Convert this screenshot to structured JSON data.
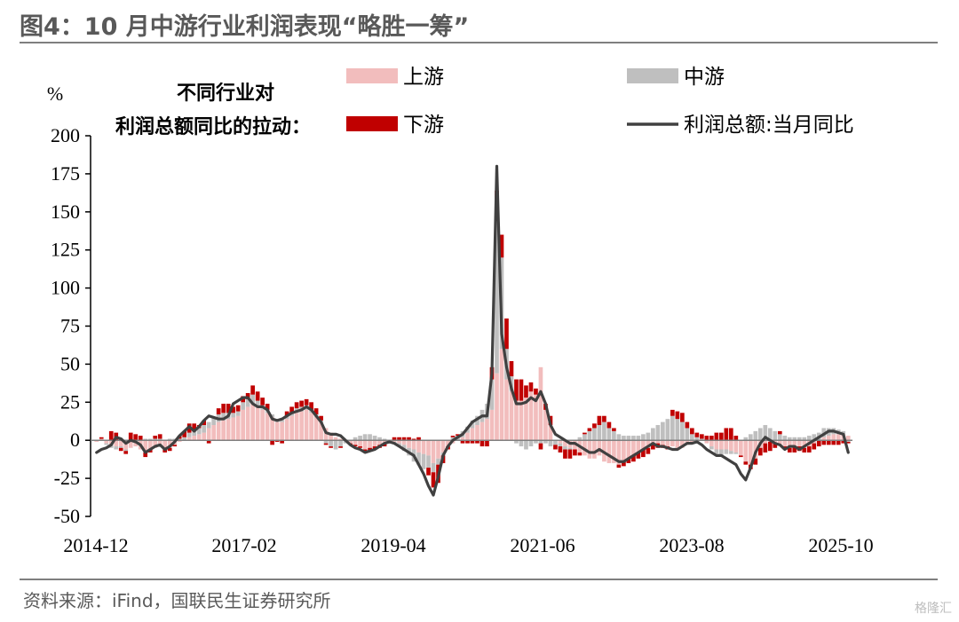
{
  "header": {
    "title": "图4：10 月中游行业利润表现“略胜一筹”"
  },
  "footer": {
    "source": "资料来源：iFind，国联民生证券研究所",
    "watermark": "格隆汇"
  },
  "chart_data": {
    "type": "bar",
    "stacked": true,
    "ylabel": "%",
    "ylim": [
      -50,
      200
    ],
    "yticks": [
      -50,
      -25,
      0,
      25,
      50,
      75,
      100,
      125,
      150,
      175,
      200
    ],
    "xticks": [
      "2014-12",
      "2017-02",
      "2019-04",
      "2021-06",
      "2023-08",
      "2025-10"
    ],
    "annotation": [
      "不同行业对",
      "利润总额同比的拉动："
    ],
    "legend_position": "top",
    "colors": {
      "上游": "#f2bdbd",
      "中游": "#bfbfbf",
      "下游": "#c00000",
      "line": "#404040"
    },
    "series": [
      {
        "name": "上游",
        "kind": "bar",
        "values": [
          -1,
          1,
          -2,
          -3,
          -4,
          -4,
          -6,
          -5,
          -4,
          -6,
          -8,
          -6,
          -5,
          -4,
          -6,
          -5,
          -3,
          -1,
          0,
          2,
          3,
          4,
          5,
          8,
          10,
          12,
          13,
          14,
          15,
          16,
          20,
          22,
          24,
          22,
          20,
          18,
          15,
          12,
          12,
          14,
          16,
          18,
          19,
          20,
          18,
          15,
          12,
          8,
          5,
          2,
          1,
          0,
          -2,
          -3,
          -4,
          -6,
          -5,
          -4,
          -3,
          -2,
          -1,
          -1,
          -2,
          -3,
          -5,
          -6,
          -8,
          -9,
          -10,
          -15,
          -12,
          -8,
          -4,
          -2,
          0,
          2,
          5,
          8,
          10,
          12,
          14,
          20,
          44,
          60,
          40,
          32,
          26,
          26,
          28,
          32,
          30,
          48,
          20,
          10,
          0,
          -2,
          -4,
          -5,
          -6,
          -8,
          -10,
          -12,
          -12,
          -10,
          -14,
          -15,
          -15,
          -16,
          -14,
          -12,
          -10,
          -8,
          -6,
          -5,
          -3,
          -2,
          -3,
          -4,
          -4,
          -5,
          -5,
          -3,
          -2,
          -1,
          0,
          -2,
          -4,
          -6,
          -6,
          -6,
          -7,
          -8,
          -10,
          -14,
          -16,
          -12,
          -5,
          -2,
          -1,
          -2,
          -3,
          -4,
          -5,
          -4,
          -4,
          -5,
          -4,
          -2,
          0,
          2,
          3,
          4,
          4,
          4,
          3,
          -1
        ]
      },
      {
        "name": "中游",
        "kind": "bar",
        "values": [
          0,
          0,
          -1,
          -2,
          -2,
          -1,
          -1,
          0,
          0,
          0,
          1,
          1,
          1,
          1,
          0,
          1,
          1,
          1,
          2,
          3,
          3,
          4,
          5,
          4,
          5,
          5,
          5,
          4,
          3,
          3,
          5,
          5,
          6,
          4,
          3,
          2,
          2,
          2,
          2,
          2,
          2,
          3,
          3,
          3,
          2,
          2,
          1,
          -2,
          -4,
          -6,
          -4,
          -2,
          0,
          2,
          3,
          4,
          4,
          3,
          2,
          1,
          0,
          -1,
          -2,
          -4,
          -5,
          -8,
          -8,
          -10,
          -8,
          -6,
          -4,
          -2,
          0,
          2,
          3,
          4,
          4,
          5,
          6,
          8,
          10,
          20,
          100,
          60,
          20,
          10,
          -2,
          -4,
          -6,
          -4,
          -2,
          -2,
          -2,
          -4,
          -3,
          -2,
          -2,
          -1,
          0,
          2,
          4,
          6,
          8,
          10,
          12,
          8,
          6,
          4,
          3,
          3,
          3,
          3,
          4,
          5,
          8,
          10,
          12,
          14,
          16,
          14,
          12,
          8,
          4,
          2,
          1,
          0,
          -2,
          -3,
          -4,
          -3,
          -2,
          -1,
          0,
          2,
          4,
          6,
          8,
          10,
          8,
          6,
          4,
          3,
          2,
          2,
          2,
          2,
          3,
          4,
          5,
          6,
          5,
          4,
          3,
          2,
          -1,
          -1
        ]
      },
      {
        "name": "下游",
        "kind": "bar",
        "values": [
          0,
          1,
          0,
          6,
          5,
          -2,
          -2,
          5,
          4,
          3,
          -3,
          -2,
          2,
          3,
          -2,
          -2,
          -1,
          2,
          4,
          6,
          5,
          2,
          3,
          -2,
          0,
          4,
          6,
          6,
          4,
          4,
          4,
          4,
          6,
          6,
          5,
          4,
          -3,
          -1,
          -2,
          3,
          4,
          4,
          4,
          4,
          5,
          4,
          3,
          -1,
          -1,
          0,
          -1,
          0,
          -1,
          -1,
          -1,
          -2,
          -2,
          -2,
          -2,
          -2,
          -1,
          2,
          2,
          2,
          2,
          1,
          2,
          0,
          -5,
          -10,
          -12,
          -5,
          -2,
          1,
          1,
          -2,
          -2,
          -2,
          -2,
          -4,
          -4,
          8,
          20,
          15,
          20,
          10,
          14,
          14,
          8,
          6,
          4,
          -4,
          4,
          6,
          -3,
          -4,
          -6,
          -6,
          -4,
          -2,
          1,
          2,
          3,
          6,
          4,
          4,
          2,
          -2,
          -3,
          -3,
          -4,
          -4,
          -5,
          -4,
          -3,
          -3,
          -2,
          -2,
          4,
          5,
          6,
          4,
          4,
          3,
          3,
          3,
          3,
          5,
          5,
          8,
          8,
          3,
          -1,
          -2,
          -3,
          -4,
          -5,
          -6,
          -6,
          -3,
          2,
          -2,
          -3,
          -4,
          -3,
          -3,
          -4,
          -4,
          -4,
          -3,
          -3,
          -3,
          -3,
          -2,
          -1,
          -1,
          -1,
          -3,
          -3,
          -4
        ]
      },
      {
        "name": "利润总额:当月同比",
        "kind": "line",
        "values": [
          -8,
          -6,
          -5,
          -3,
          2,
          1,
          -2,
          0,
          -1,
          -3,
          -8,
          -6,
          -4,
          -3,
          -6,
          -4,
          -1,
          3,
          6,
          9,
          6,
          9,
          13,
          16,
          15,
          14,
          14,
          16,
          24,
          26,
          28,
          28,
          24,
          22,
          22,
          20,
          14,
          13,
          14,
          16,
          18,
          19,
          20,
          22,
          20,
          16,
          12,
          5,
          4,
          4,
          3,
          0,
          -3,
          -5,
          -6,
          -8,
          -7,
          -6,
          -4,
          -2,
          -1,
          -2,
          -4,
          -6,
          -8,
          -10,
          -16,
          -22,
          -30,
          -36,
          -24,
          -10,
          -4,
          0,
          2,
          4,
          8,
          12,
          14,
          16,
          16,
          44,
          180,
          70,
          48,
          34,
          24,
          24,
          25,
          28,
          26,
          32,
          24,
          10,
          4,
          2,
          0,
          -2,
          -2,
          -4,
          -6,
          -8,
          -8,
          -6,
          -8,
          -10,
          -12,
          -14,
          -14,
          -12,
          -10,
          -8,
          -6,
          -4,
          -2,
          -4,
          -4,
          -5,
          -6,
          -6,
          -4,
          -2,
          -2,
          -1,
          -3,
          -6,
          -8,
          -10,
          -10,
          -12,
          -14,
          -16,
          -22,
          -26,
          -18,
          -8,
          -2,
          2,
          0,
          -2,
          -3,
          -6,
          -4,
          -4,
          -6,
          -4,
          -2,
          0,
          2,
          4,
          6,
          6,
          5,
          4,
          -8
        ]
      }
    ]
  }
}
